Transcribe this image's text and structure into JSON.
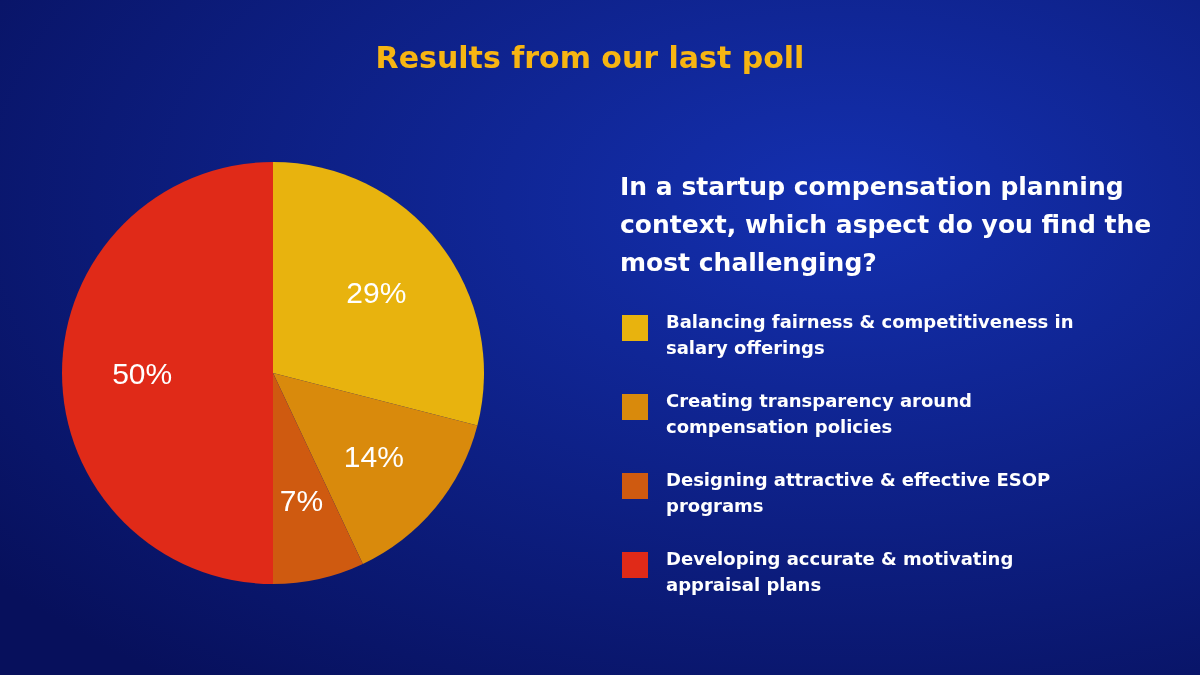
{
  "chart_data": {
    "type": "pie",
    "title": "Results from our last poll",
    "subtitle": "In a startup compensation planning context, which aspect do you find the most challenging?",
    "categories": [
      "Balancing fairness & competitiveness in salary offerings",
      "Creating transparency around compensation policies",
      "Designing attractive & effective ESOP programs",
      "Developing accurate & motivating appraisal plans"
    ],
    "values": [
      29,
      14,
      7,
      50
    ],
    "colors": [
      "#e8b30e",
      "#d98a0c",
      "#cf5a10",
      "#e02a18"
    ],
    "value_labels": [
      "29%",
      "14%",
      "7%",
      "50%"
    ],
    "legend": "right"
  }
}
